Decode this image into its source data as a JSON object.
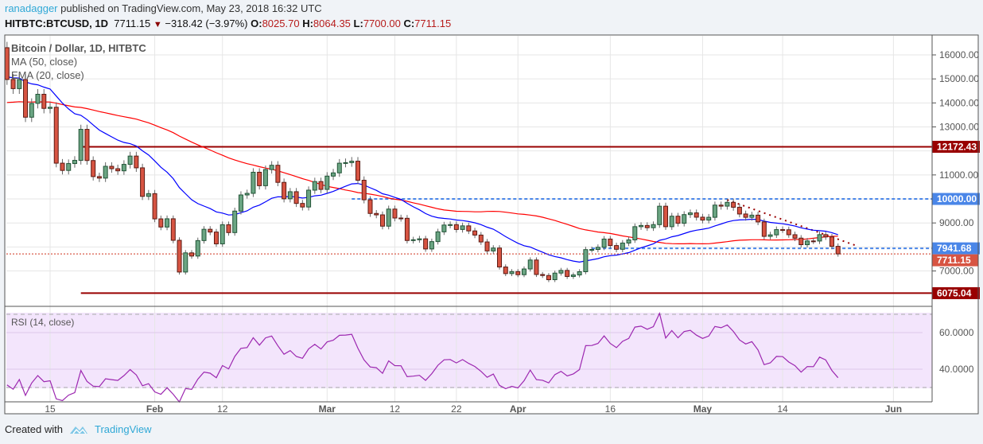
{
  "header": {
    "author": "ranadagger",
    "published": "published on TradingView.com, May 23, 2018 16:32 UTC",
    "symbol": "HITBTC:BTCUSD, 1D",
    "last": "7711.15",
    "change": "−318.42 (−3.97%)",
    "o_label": "O:",
    "o": "8025.70",
    "h_label": "H:",
    "h": "8064.35",
    "l_label": "L:",
    "l": "7700.00",
    "c_label": "C:",
    "c": "7711.15"
  },
  "legend": {
    "title": "Bitcoin / Dollar, 1D, HITBTC",
    "ma": "MA (50, close)",
    "ema": "EMA (20, close)",
    "rsi": "RSI (14, close)"
  },
  "colors": {
    "up": "#6ba583",
    "down": "#d75442",
    "ma": "#ff0000",
    "ema": "#0000ff",
    "rsi": "#9c27b0",
    "support": "#990000",
    "blue_level": "#4a86e8"
  },
  "footer": {
    "created": "Created with",
    "brand": "TradingView"
  },
  "chart_data": {
    "type": "candlestick",
    "title": "Bitcoin / Dollar, 1D, HITBTC",
    "first_open": 16300,
    "closes": [
      14976,
      14595,
      14973,
      13405,
      13980,
      14360,
      13772,
      13819,
      11490,
      11188,
      11474,
      11607,
      12899,
      11600,
      10931,
      10868,
      11359,
      11259,
      11171,
      11440,
      11786,
      11296,
      10106,
      10221,
      9170,
      8830,
      9174,
      8277,
      6955,
      7754,
      7621,
      8265,
      8736,
      8621,
      8129,
      8926,
      8598,
      9494,
      10166,
      10233,
      11112,
      10551,
      11225,
      11403,
      10690,
      10005,
      10301,
      9813,
      9664,
      10366,
      10725,
      10397,
      10951,
      11086,
      11489,
      11512,
      11573,
      10779,
      9965,
      9395,
      9337,
      8866,
      9578,
      9205,
      9194,
      8269,
      8300,
      8338,
      7916,
      8223,
      8630,
      8913,
      8929,
      8728,
      8879,
      8668,
      8495,
      8209,
      7834,
      7954,
      7165,
      6890,
      6973,
      6845,
      7083,
      7456,
      6853,
      6811,
      6636,
      6911,
      7023,
      6770,
      6834,
      6968,
      7889,
      7895,
      7986,
      8329,
      8058,
      7902,
      8163,
      8294,
      8845,
      8895,
      8802,
      8930,
      9697,
      8845,
      9281,
      8987,
      9348,
      9419,
      9240,
      9119,
      9235,
      9743,
      9700,
      9858,
      9654,
      9373,
      9234,
      9325,
      9043,
      8441,
      8504,
      8723,
      8716,
      8510,
      8368,
      8094,
      8250,
      8247,
      8513,
      8419,
      8025.7,
      7711.15
    ],
    "y_ticks": [
      "16000.00",
      "15000.00",
      "14000.00",
      "13000.00",
      "11000.00",
      "10000.00",
      "9000.00",
      "7000.00"
    ],
    "y_tick_values": [
      16000,
      15000,
      14000,
      13000,
      11000,
      10000,
      9000,
      7000
    ],
    "x_ticks": [
      {
        "label": "15",
        "day": 7
      },
      {
        "label": "Feb",
        "day": 24
      },
      {
        "label": "12",
        "day": 35
      },
      {
        "label": "Mar",
        "day": 52
      },
      {
        "label": "12",
        "day": 63
      },
      {
        "label": "22",
        "day": 73
      },
      {
        "label": "Apr",
        "day": 83
      },
      {
        "label": "16",
        "day": 98
      },
      {
        "label": "May",
        "day": 113
      },
      {
        "label": "14",
        "day": 126
      },
      {
        "label": "Jun",
        "day": 144
      }
    ],
    "levels": [
      {
        "label": "12172.43",
        "value": 12172.43,
        "style": "solid",
        "color": "#990000",
        "from_day": 12
      },
      {
        "label": "10000.00",
        "value": 10000,
        "style": "dashed",
        "color": "#4a86e8",
        "from_day": 56
      },
      {
        "label": "7941.68",
        "value": 7941.68,
        "style": "dashed",
        "color": "#4a86e8",
        "from_day": 95
      },
      {
        "label": "7711.15",
        "value": 7711.15,
        "style": "dotted",
        "color": "#d75442",
        "from_day": -2
      },
      {
        "label": "6075.04",
        "value": 6075.04,
        "style": "solid",
        "color": "#990000",
        "from_day": 12
      }
    ],
    "trendline": {
      "from": {
        "day": 117,
        "value": 9960
      },
      "to": {
        "day": 138,
        "value": 8050
      }
    },
    "rsi_ticks": [
      "60.0000",
      "40.0000"
    ],
    "rsi_tick_values": [
      60,
      40
    ],
    "rsi_bands": [
      70,
      30
    ],
    "ylim": [
      5500,
      17300
    ]
  }
}
